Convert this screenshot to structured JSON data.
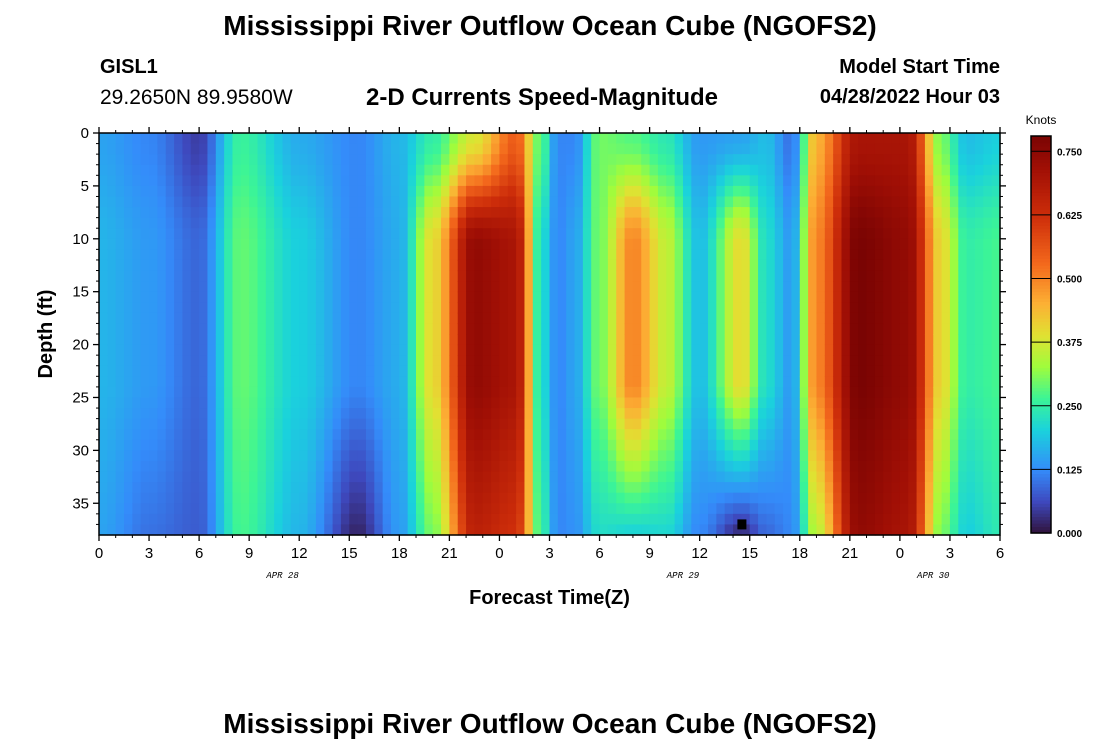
{
  "header": {
    "title": "Mississippi River Outflow Ocean Cube (NGOFS2)",
    "station_id": "GISL1",
    "coordinates": "29.2650N  89.9580W",
    "subtitle": "2-D Currents Speed-Magnitude",
    "model_start_label": "Model Start Time",
    "model_start_value": "04/28/2022 Hour 03"
  },
  "footer": {
    "title": "Mississippi River Outflow Ocean Cube (NGOFS2)"
  },
  "chart_data": {
    "type": "heatmap",
    "xlabel": "Forecast Time(Z)",
    "ylabel": "Depth (ft)",
    "x_range_hours": [
      0,
      54
    ],
    "x_tick_labels": [
      "0",
      "3",
      "6",
      "9",
      "12",
      "15",
      "18",
      "21",
      "0",
      "3",
      "6",
      "9",
      "12",
      "15",
      "18",
      "21",
      "0",
      "3",
      "6"
    ],
    "date_labels": [
      {
        "label": "APR 28",
        "hour": 11
      },
      {
        "label": "APR 29",
        "hour": 35
      },
      {
        "label": "APR 30",
        "hour": 50
      }
    ],
    "y_range": [
      0,
      38
    ],
    "y_ticks": [
      0,
      5,
      10,
      15,
      20,
      25,
      30,
      35
    ],
    "colorbar": {
      "units": "Knots",
      "range": [
        0.0,
        0.78
      ],
      "ticks": [
        "0.000",
        "0.125",
        "0.250",
        "0.375",
        "0.500",
        "0.625",
        "0.750"
      ],
      "tick_values": [
        0.0,
        0.125,
        0.25,
        0.375,
        0.5,
        0.625,
        0.75
      ],
      "colormap": "turbo"
    },
    "time_profiles": [
      {
        "t": 0,
        "top": 0.15,
        "mid": 0.17,
        "bot": 0.15
      },
      {
        "t": 3,
        "top": 0.12,
        "mid": 0.14,
        "bot": 0.1
      },
      {
        "t": 6,
        "top": 0.05,
        "mid": 0.09,
        "bot": 0.08
      },
      {
        "t": 8.5,
        "top": 0.26,
        "mid": 0.29,
        "bot": 0.27
      },
      {
        "t": 12,
        "top": 0.16,
        "mid": 0.2,
        "bot": 0.17
      },
      {
        "t": 15.5,
        "top": 0.12,
        "mid": 0.12,
        "bot": 0.02
      },
      {
        "t": 18,
        "top": 0.17,
        "mid": 0.16,
        "bot": 0.14
      },
      {
        "t": 20,
        "top": 0.25,
        "mid": 0.4,
        "bot": 0.3
      },
      {
        "t": 22.5,
        "top": 0.38,
        "mid": 0.74,
        "bot": 0.66
      },
      {
        "t": 25,
        "top": 0.55,
        "mid": 0.7,
        "bot": 0.62
      },
      {
        "t": 26.5,
        "top": 0.28,
        "mid": 0.22,
        "bot": 0.26
      },
      {
        "t": 27.5,
        "top": 0.12,
        "mid": 0.12,
        "bot": 0.12
      },
      {
        "t": 28.5,
        "top": 0.12,
        "mid": 0.15,
        "bot": 0.13
      },
      {
        "t": 30,
        "top": 0.3,
        "mid": 0.3,
        "bot": 0.22
      },
      {
        "t": 32,
        "top": 0.28,
        "mid": 0.5,
        "bot": 0.2
      },
      {
        "t": 34,
        "top": 0.24,
        "mid": 0.36,
        "bot": 0.21
      },
      {
        "t": 36,
        "top": 0.14,
        "mid": 0.18,
        "bot": 0.12
      },
      {
        "t": 38.5,
        "top": 0.15,
        "mid": 0.4,
        "bot": 0.02
      },
      {
        "t": 40,
        "top": 0.18,
        "mid": 0.22,
        "bot": 0.09
      },
      {
        "t": 41.5,
        "top": 0.1,
        "mid": 0.14,
        "bot": 0.12
      },
      {
        "t": 43,
        "top": 0.45,
        "mid": 0.5,
        "bot": 0.35
      },
      {
        "t": 45.5,
        "top": 0.7,
        "mid": 0.78,
        "bot": 0.74
      },
      {
        "t": 48.5,
        "top": 0.7,
        "mid": 0.74,
        "bot": 0.7
      },
      {
        "t": 50.5,
        "top": 0.3,
        "mid": 0.4,
        "bot": 0.3
      },
      {
        "t": 52,
        "top": 0.18,
        "mid": 0.25,
        "bot": 0.2
      },
      {
        "t": 54,
        "top": 0.2,
        "mid": 0.27,
        "bot": 0.24
      }
    ],
    "minimum_cell": {
      "hour": 38.5,
      "depth": 37
    }
  }
}
